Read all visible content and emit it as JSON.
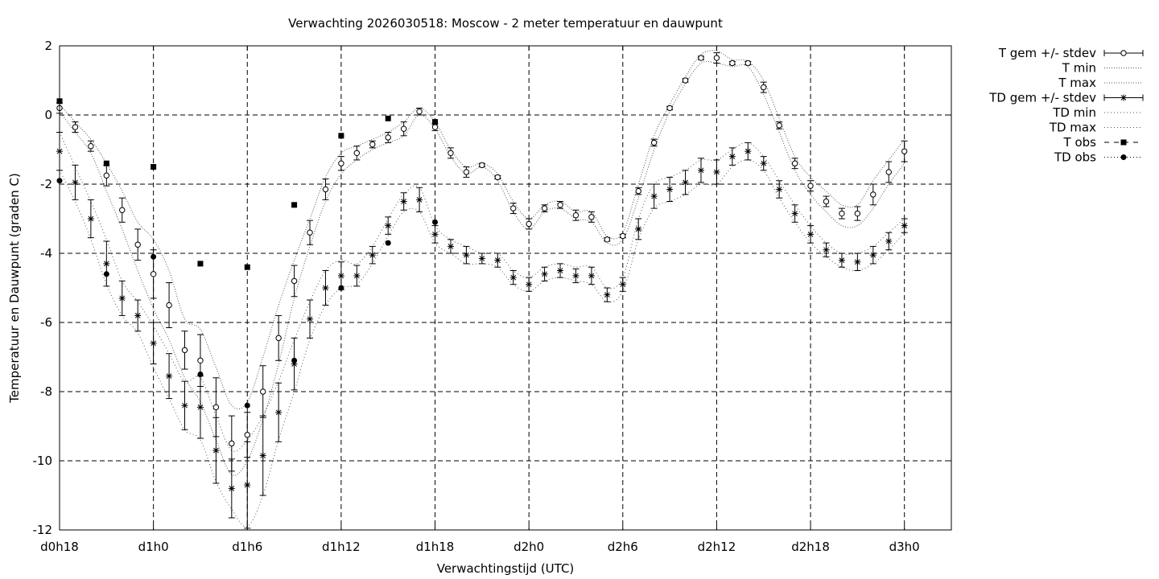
{
  "chart_data": {
    "type": "line",
    "title": "Verwachting 2026030518: Moscow - 2 meter temperatuur en dauwpunt",
    "xlabel": "Verwachtingstijd (UTC)",
    "ylabel": "Temperatuur en Dauwpunt (graden C)",
    "xlim": [
      18,
      75
    ],
    "ylim": [
      -12,
      2
    ],
    "grid": true,
    "legend_position": "right, outside plot",
    "x_ticks": [
      {
        "x": 18,
        "label": "d0h18"
      },
      {
        "x": 24,
        "label": "d1h0"
      },
      {
        "x": 30,
        "label": "d1h6"
      },
      {
        "x": 36,
        "label": "d1h12"
      },
      {
        "x": 42,
        "label": "d1h18"
      },
      {
        "x": 48,
        "label": "d2h0"
      },
      {
        "x": 54,
        "label": "d2h6"
      },
      {
        "x": 60,
        "label": "d2h12"
      },
      {
        "x": 66,
        "label": "d2h18"
      },
      {
        "x": 72,
        "label": "d3h0"
      }
    ],
    "y_ticks": [
      2,
      0,
      -2,
      -4,
      -6,
      -8,
      -10,
      -12
    ],
    "y_tick_labels": [
      "2",
      "0",
      "-2",
      "-4",
      "-6",
      "-8",
      "-10",
      "-12"
    ],
    "legend": [
      "T gem +/- stdev",
      "T min",
      "T max",
      "TD gem +/- stdev",
      "TD min",
      "TD max",
      "T obs",
      "TD obs"
    ],
    "x": [
      18,
      19,
      20,
      21,
      22,
      23,
      24,
      25,
      26,
      27,
      28,
      29,
      30,
      31,
      32,
      33,
      34,
      35,
      36,
      37,
      38,
      39,
      40,
      41,
      42,
      43,
      44,
      45,
      46,
      47,
      48,
      49,
      50,
      51,
      52,
      53,
      54,
      55,
      56,
      57,
      58,
      59,
      60,
      61,
      62,
      63,
      64,
      65,
      66,
      67,
      68,
      69,
      70,
      71,
      72
    ],
    "series": [
      {
        "name": "T gem +/- stdev",
        "mean": [
          0.2,
          -0.35,
          -0.9,
          -1.75,
          -2.75,
          -3.75,
          -4.6,
          -5.5,
          -6.8,
          -7.1,
          -8.45,
          -9.5,
          -9.25,
          -8.0,
          -6.45,
          -4.8,
          -3.4,
          -2.15,
          -1.4,
          -1.1,
          -0.85,
          -0.65,
          -0.4,
          0.1,
          -0.35,
          -1.1,
          -1.65,
          -1.45,
          -1.8,
          -2.7,
          -3.15,
          -2.7,
          -2.6,
          -2.9,
          -2.95,
          -3.6,
          -3.5,
          -2.2,
          -0.8,
          0.2,
          1.0,
          1.65,
          1.65,
          1.5,
          1.5,
          0.8,
          -0.3,
          -1.4,
          -2.05,
          -2.5,
          -2.85,
          -2.85,
          -2.3,
          -1.65,
          -1.05
        ],
        "stdev": [
          0.15,
          0.15,
          0.15,
          0.3,
          0.35,
          0.45,
          0.7,
          0.65,
          0.55,
          0.75,
          0.85,
          0.8,
          0.65,
          0.75,
          0.65,
          0.45,
          0.35,
          0.3,
          0.2,
          0.2,
          0.1,
          0.15,
          0.2,
          0.1,
          0.1,
          0.15,
          0.15,
          0.05,
          0.05,
          0.15,
          0.15,
          0.1,
          0.1,
          0.15,
          0.15,
          0.05,
          0.05,
          0.1,
          0.1,
          0.05,
          0.05,
          0.05,
          0.15,
          0.05,
          0.05,
          0.15,
          0.1,
          0.15,
          0.15,
          0.15,
          0.15,
          0.2,
          0.3,
          0.3,
          0.3
        ]
      },
      {
        "name": "T min",
        "values": [
          0.1,
          -0.5,
          -1.1,
          -2.2,
          -3.3,
          -4.5,
          -5.6,
          -6.5,
          -7.6,
          -8.3,
          -9.4,
          -10.4,
          -10.0,
          -8.8,
          -7.2,
          -5.3,
          -3.8,
          -2.5,
          -1.7,
          -1.3,
          -1.0,
          -0.8,
          -0.6,
          0.0,
          -0.4,
          -1.2,
          -1.7,
          -1.5,
          -1.9,
          -2.8,
          -3.3,
          -2.8,
          -2.7,
          -3.0,
          -3.1,
          -3.7,
          -3.6,
          -2.4,
          -1.0,
          0.1,
          0.9,
          1.5,
          1.5,
          1.4,
          1.4,
          0.6,
          -0.5,
          -1.6,
          -2.3,
          -2.8,
          -3.2,
          -3.2,
          -2.7,
          -2.0,
          -1.4
        ]
      },
      {
        "name": "T max",
        "values": [
          0.3,
          -0.2,
          -0.7,
          -1.4,
          -2.2,
          -3.1,
          -3.6,
          -4.5,
          -5.9,
          -6.2,
          -7.3,
          -8.4,
          -8.3,
          -7.0,
          -5.5,
          -4.2,
          -3.0,
          -1.8,
          -1.1,
          -0.9,
          -0.7,
          -0.5,
          -0.2,
          0.2,
          -0.2,
          -1.0,
          -1.5,
          -1.4,
          -1.7,
          -2.5,
          -3.0,
          -2.6,
          -2.5,
          -2.8,
          -2.8,
          -3.5,
          -3.4,
          -2.0,
          -0.6,
          0.3,
          1.1,
          1.75,
          1.85,
          1.6,
          1.55,
          1.0,
          -0.1,
          -1.2,
          -1.8,
          -2.2,
          -2.6,
          -2.6,
          -1.9,
          -1.3,
          -0.7
        ]
      },
      {
        "name": "TD gem +/- stdev",
        "mean": [
          -1.05,
          -1.95,
          -3.0,
          -4.3,
          -5.3,
          -5.8,
          -6.6,
          -7.55,
          -8.4,
          -8.45,
          -9.7,
          -10.8,
          -10.7,
          -9.85,
          -8.6,
          -7.2,
          -5.9,
          -5.0,
          -4.65,
          -4.65,
          -4.05,
          -3.2,
          -2.5,
          -2.45,
          -3.45,
          -3.8,
          -4.05,
          -4.15,
          -4.2,
          -4.7,
          -4.9,
          -4.6,
          -4.5,
          -4.65,
          -4.65,
          -5.2,
          -4.9,
          -3.3,
          -2.35,
          -2.15,
          -1.95,
          -1.6,
          -1.65,
          -1.2,
          -1.05,
          -1.4,
          -2.15,
          -2.85,
          -3.45,
          -3.9,
          -4.2,
          -4.25,
          -4.05,
          -3.65,
          -3.2
        ]
      },
      {
        "name": "TD min",
        "values": [
          -1.6,
          -2.5,
          -3.6,
          -4.9,
          -5.8,
          -6.3,
          -7.3,
          -8.2,
          -9.1,
          -9.4,
          -10.6,
          -11.4,
          -11.9,
          -11.0,
          -9.4,
          -8.0,
          -6.5,
          -5.5,
          -5.0,
          -4.9,
          -4.3,
          -3.5,
          -2.8,
          -2.8,
          -3.7,
          -4.0,
          -4.3,
          -4.3,
          -4.4,
          -4.9,
          -5.1,
          -4.8,
          -4.7,
          -4.8,
          -4.9,
          -5.4,
          -5.1,
          -3.6,
          -2.7,
          -2.5,
          -2.3,
          -2.0,
          -2.0,
          -1.5,
          -1.3,
          -1.6,
          -2.4,
          -3.1,
          -3.7,
          -4.1,
          -4.4,
          -4.5,
          -4.3,
          -3.9,
          -3.4
        ]
      },
      {
        "name": "TD max",
        "values": [
          -0.5,
          -1.5,
          -2.5,
          -3.6,
          -4.8,
          -5.4,
          -6.1,
          -6.9,
          -7.7,
          -7.6,
          -8.7,
          -9.7,
          -9.4,
          -8.7,
          -7.7,
          -6.5,
          -5.4,
          -4.5,
          -4.2,
          -4.3,
          -3.8,
          -3.0,
          -2.3,
          -2.1,
          -3.2,
          -3.6,
          -3.8,
          -4.0,
          -4.0,
          -4.5,
          -4.7,
          -4.4,
          -4.3,
          -4.4,
          -4.4,
          -5.0,
          -4.7,
          -3.0,
          -2.0,
          -1.8,
          -1.6,
          -1.3,
          -1.3,
          -1.0,
          -0.8,
          -1.2,
          -1.9,
          -2.6,
          -3.2,
          -3.7,
          -4.0,
          -4.0,
          -3.8,
          -3.4,
          -3.0
        ]
      },
      {
        "name": "T obs",
        "x": [
          18,
          21,
          24,
          27,
          30,
          33,
          36,
          39,
          42
        ],
        "values": [
          0.4,
          -1.4,
          -1.5,
          -4.3,
          -4.4,
          -2.6,
          -0.6,
          -0.1,
          -0.2
        ]
      },
      {
        "name": "TD obs",
        "x": [
          18,
          21,
          24,
          27,
          30,
          33,
          36,
          39,
          42
        ],
        "values": [
          -1.9,
          -4.6,
          -4.1,
          -7.5,
          -8.4,
          -7.1,
          -5.0,
          -3.7,
          -3.1
        ]
      }
    ]
  }
}
